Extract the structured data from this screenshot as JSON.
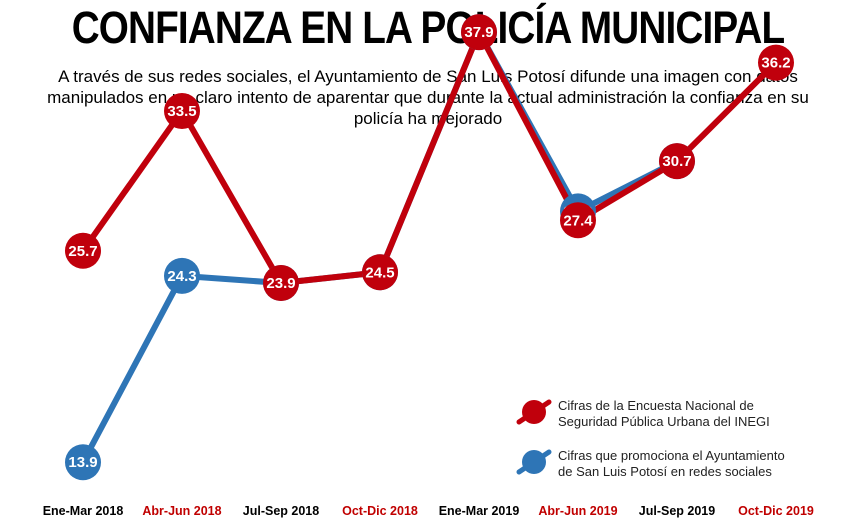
{
  "header": {
    "title": "CONFIANZA EN LA POLICÍA MUNICIPAL",
    "subtitle": "A través de sus redes sociales, el Ayuntamiento de San Luis Potosí difunde una imagen con datos manipulados en un claro intento de aparentar que durante la actual administración la confianza en su policía ha mejorado"
  },
  "colors": {
    "red": "#c0000c",
    "blue": "#2e75b6",
    "tick_dark": "#000000",
    "tick_red": "#c00000"
  },
  "chart_data": {
    "type": "line",
    "categories": [
      "Ene-Mar 2018",
      "Abr-Jun 2018",
      "Jul-Sep 2018",
      "Oct-Dic 2018",
      "Ene-Mar 2019",
      "Abr-Jun 2019",
      "Jul-Sep 2019",
      "Oct-Dic 2019"
    ],
    "tick_colors": [
      "dark",
      "red",
      "dark",
      "red",
      "dark",
      "red",
      "dark",
      "red"
    ],
    "series": [
      {
        "name": "Cifras de la Encuesta Nacional de Seguridad Pública Urbana del INEGI",
        "legend_lines": [
          "Cifras de la Encuesta Nacional de",
          "Seguridad Pública Urbana del INEGI"
        ],
        "color": "red",
        "values": [
          25.7,
          33.5,
          23.9,
          24.5,
          37.9,
          27.4,
          30.7,
          36.2
        ],
        "labels": [
          "25.7",
          "33.5",
          "23.9",
          "24.5",
          "37.9",
          "27.4",
          "30.7",
          "36.2"
        ]
      },
      {
        "name": "Cifras que promociona el Ayuntamiento de San Luis Potosí en redes sociales",
        "legend_lines": [
          "Cifras que promociona el Ayuntamiento",
          "de San Luis Potosí en redes sociales"
        ],
        "color": "blue",
        "values": [
          13.9,
          24.3,
          23.9,
          24.5,
          37.9,
          27.9,
          30.7,
          null
        ],
        "labels": [
          "13.9",
          "24.3",
          "23.9",
          "24.5",
          "37.9",
          "27.9",
          "30.7",
          null
        ]
      }
    ],
    "xlabel": "",
    "ylabel": "",
    "grid": false,
    "legend_position": "bottom-right"
  }
}
